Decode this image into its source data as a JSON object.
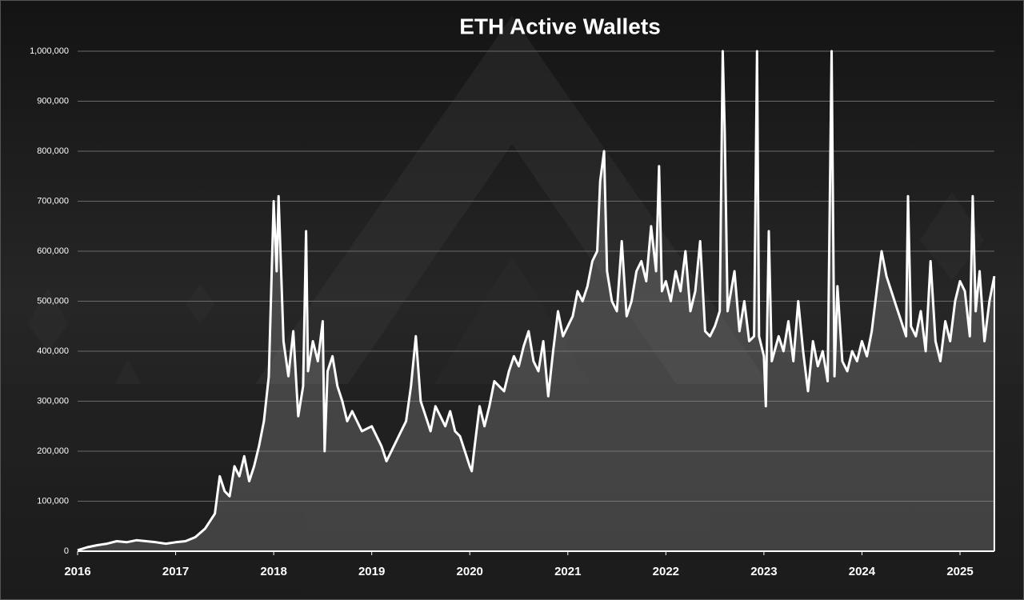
{
  "chart_data": {
    "type": "line",
    "title": "ETH Active Wallets",
    "color": "#ffffff",
    "fill_color": "#8a8a8a",
    "grid": true,
    "xlim": [
      2016,
      2025.35
    ],
    "xticks": [
      2016,
      2017,
      2018,
      2019,
      2020,
      2021,
      2022,
      2023,
      2024,
      2025
    ],
    "ylim": [
      0,
      1000000
    ],
    "yticks": [
      0,
      {
        "value": 100000,
        "label": "100,000"
      },
      {
        "value": 200000,
        "label": "200,000"
      },
      {
        "value": 300000,
        "label": "300,000"
      },
      {
        "value": 400000,
        "label": "400,000"
      },
      {
        "value": 500000,
        "label": "500,000"
      },
      {
        "value": 600000,
        "label": "600,000"
      },
      {
        "value": 700000,
        "label": "700,000"
      },
      {
        "value": 800000,
        "label": "800,000"
      },
      {
        "value": 900000,
        "label": "900,000"
      },
      {
        "value": 1000000,
        "label": "1,000,000"
      }
    ],
    "x": [
      2016.0,
      2016.1,
      2016.2,
      2016.3,
      2016.4,
      2016.5,
      2016.6,
      2016.7,
      2016.8,
      2016.9,
      2017.0,
      2017.1,
      2017.2,
      2017.3,
      2017.4,
      2017.45,
      2017.5,
      2017.55,
      2017.6,
      2017.65,
      2017.7,
      2017.75,
      2017.8,
      2017.85,
      2017.9,
      2017.95,
      2018.0,
      2018.03,
      2018.05,
      2018.1,
      2018.15,
      2018.2,
      2018.25,
      2018.3,
      2018.33,
      2018.35,
      2018.4,
      2018.45,
      2018.5,
      2018.52,
      2018.55,
      2018.6,
      2018.65,
      2018.7,
      2018.75,
      2018.8,
      2018.9,
      2019.0,
      2019.05,
      2019.1,
      2019.15,
      2019.2,
      2019.3,
      2019.35,
      2019.4,
      2019.45,
      2019.5,
      2019.55,
      2019.6,
      2019.65,
      2019.7,
      2019.75,
      2019.8,
      2019.85,
      2019.9,
      2019.95,
      2020.0,
      2020.02,
      2020.05,
      2020.1,
      2020.15,
      2020.2,
      2020.25,
      2020.3,
      2020.35,
      2020.4,
      2020.45,
      2020.5,
      2020.55,
      2020.6,
      2020.65,
      2020.7,
      2020.75,
      2020.8,
      2020.85,
      2020.9,
      2020.95,
      2021.0,
      2021.05,
      2021.1,
      2021.15,
      2021.2,
      2021.25,
      2021.3,
      2021.33,
      2021.37,
      2021.4,
      2021.45,
      2021.5,
      2021.55,
      2021.6,
      2021.65,
      2021.7,
      2021.75,
      2021.8,
      2021.85,
      2021.9,
      2021.93,
      2021.96,
      2022.0,
      2022.05,
      2022.1,
      2022.15,
      2022.2,
      2022.25,
      2022.3,
      2022.35,
      2022.4,
      2022.45,
      2022.5,
      2022.55,
      2022.58,
      2022.6,
      2022.63,
      2022.7,
      2022.75,
      2022.8,
      2022.85,
      2022.9,
      2022.93,
      2022.95,
      2023.0,
      2023.02,
      2023.05,
      2023.08,
      2023.15,
      2023.2,
      2023.25,
      2023.3,
      2023.35,
      2023.4,
      2023.45,
      2023.5,
      2023.55,
      2023.6,
      2023.65,
      2023.69,
      2023.72,
      2023.75,
      2023.8,
      2023.85,
      2023.9,
      2023.95,
      2024.0,
      2024.05,
      2024.1,
      2024.15,
      2024.2,
      2024.25,
      2024.3,
      2024.35,
      2024.4,
      2024.45,
      2024.47,
      2024.5,
      2024.55,
      2024.6,
      2024.65,
      2024.7,
      2024.75,
      2024.8,
      2024.85,
      2024.9,
      2024.95,
      2025.0,
      2025.05,
      2025.1,
      2025.13,
      2025.16,
      2025.2,
      2025.25,
      2025.3,
      2025.35
    ],
    "values": [
      2000,
      8000,
      12000,
      15000,
      20000,
      18000,
      22000,
      20000,
      18000,
      15000,
      18000,
      20000,
      28000,
      45000,
      75000,
      150000,
      120000,
      110000,
      170000,
      150000,
      190000,
      140000,
      170000,
      210000,
      260000,
      350000,
      700000,
      560000,
      710000,
      420000,
      350000,
      440000,
      270000,
      330000,
      640000,
      360000,
      420000,
      380000,
      460000,
      200000,
      360000,
      390000,
      330000,
      300000,
      260000,
      280000,
      240000,
      250000,
      230000,
      210000,
      180000,
      200000,
      240000,
      260000,
      330000,
      430000,
      300000,
      270000,
      240000,
      290000,
      270000,
      250000,
      280000,
      240000,
      230000,
      200000,
      170000,
      160000,
      210000,
      290000,
      250000,
      290000,
      340000,
      330000,
      320000,
      360000,
      390000,
      370000,
      410000,
      440000,
      380000,
      360000,
      420000,
      310000,
      400000,
      480000,
      430000,
      450000,
      470000,
      520000,
      500000,
      530000,
      580000,
      600000,
      740000,
      800000,
      560000,
      500000,
      480000,
      620000,
      470000,
      500000,
      560000,
      580000,
      540000,
      650000,
      560000,
      770000,
      520000,
      540000,
      500000,
      560000,
      520000,
      600000,
      480000,
      520000,
      620000,
      440000,
      430000,
      450000,
      480000,
      1000000,
      840000,
      480000,
      560000,
      440000,
      500000,
      420000,
      430000,
      1000000,
      430000,
      390000,
      290000,
      640000,
      380000,
      430000,
      400000,
      460000,
      380000,
      500000,
      400000,
      320000,
      420000,
      370000,
      400000,
      340000,
      1000000,
      350000,
      530000,
      380000,
      360000,
      400000,
      380000,
      420000,
      390000,
      440000,
      520000,
      600000,
      550000,
      520000,
      490000,
      460000,
      430000,
      710000,
      450000,
      430000,
      480000,
      400000,
      580000,
      420000,
      380000,
      460000,
      420000,
      500000,
      540000,
      520000,
      430000,
      710000,
      480000,
      560000,
      420000,
      500000,
      550000
    ]
  }
}
